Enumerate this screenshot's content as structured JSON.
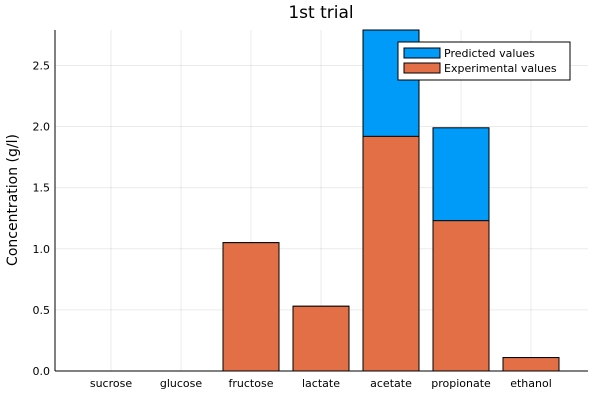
{
  "chart_data": {
    "type": "bar",
    "title": "1st trial",
    "xlabel": "",
    "ylabel": "Concentration (g/l)",
    "categories": [
      "sucrose",
      "glucose",
      "fructose",
      "lactate",
      "acetate",
      "propionate",
      "ethanol"
    ],
    "series": [
      {
        "name": "Predicted values",
        "color": "#009af9",
        "values": [
          0.0,
          0.0,
          1.05,
          0.53,
          2.79,
          1.99,
          0.11
        ]
      },
      {
        "name": "Experimental values",
        "color": "#e26f46",
        "values": [
          0.0,
          0.0,
          1.05,
          0.53,
          1.92,
          1.23,
          0.11
        ]
      }
    ],
    "ylim": [
      0,
      2.79
    ],
    "yticks": [
      "0.0",
      "0.5",
      "1.0",
      "1.5",
      "2.0",
      "2.5"
    ],
    "grid": true,
    "legend_position": "top-right"
  }
}
